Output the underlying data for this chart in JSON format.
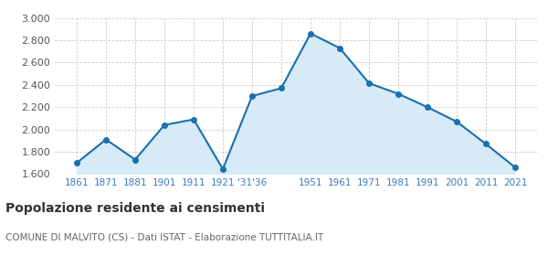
{
  "years": [
    1861,
    1871,
    1881,
    1901,
    1911,
    1921,
    1931,
    1936,
    1951,
    1961,
    1971,
    1981,
    1991,
    2001,
    2011,
    2021
  ],
  "population": [
    1700,
    1910,
    1730,
    2040,
    2090,
    1645,
    2300,
    2370,
    2860,
    2730,
    2415,
    2320,
    2200,
    2070,
    1870,
    1660
  ],
  "x_labels": [
    "1861",
    "1871",
    "1881",
    "1901",
    "1911",
    "1921",
    "'31'36",
    "",
    "1951",
    "1961",
    "1971",
    "1981",
    "1991",
    "2001",
    "2011",
    "2021"
  ],
  "line_color": "#1a6faf",
  "fill_color": "#d6eaf8",
  "marker_color": "#1a6faf",
  "grid_color": "#cccccc",
  "background_color": "#ffffff",
  "title": "Popolazione residente ai censimenti",
  "subtitle": "COMUNE DI MALVITO (CS) - Dati ISTAT - Elaborazione TUTTITALIA.IT",
  "title_color": "#333333",
  "subtitle_color": "#666666",
  "ylim": [
    1600,
    3000
  ],
  "yticks": [
    1600,
    1800,
    2000,
    2200,
    2400,
    2600,
    2800,
    3000
  ]
}
